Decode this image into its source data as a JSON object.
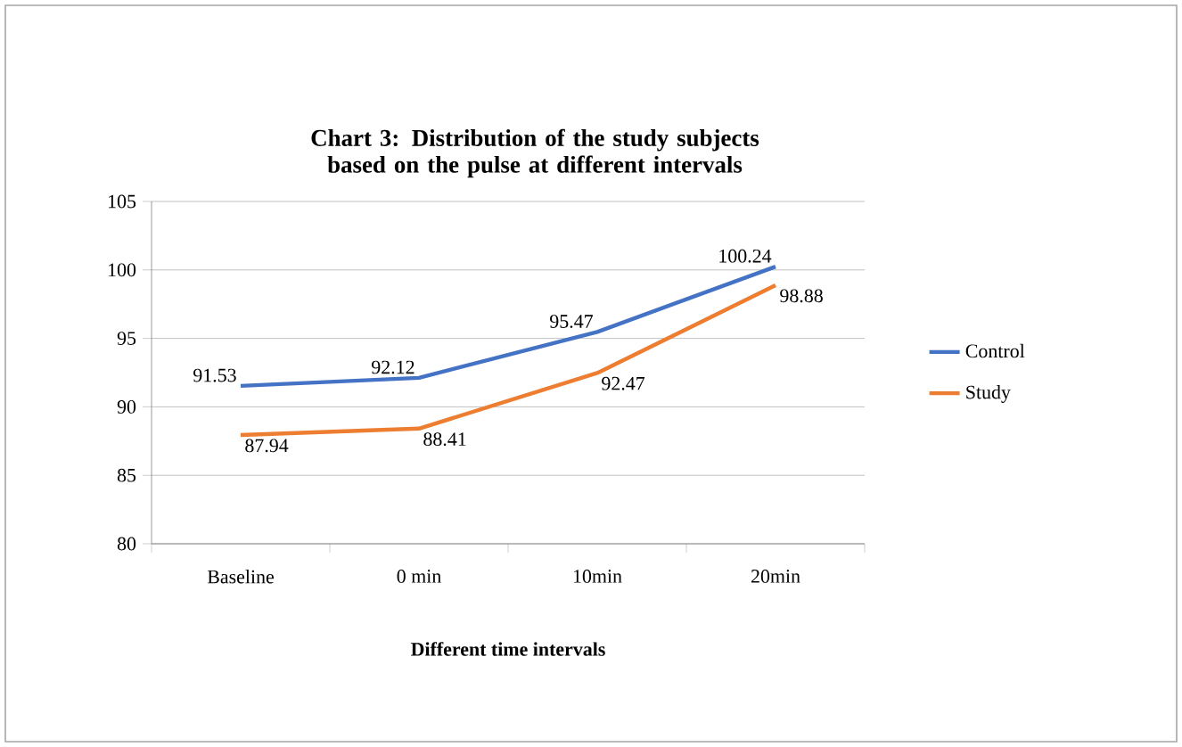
{
  "chart_data": {
    "type": "line",
    "title": "Chart 3: Distribution of the study subjects based on the pulse at different intervals",
    "xlabel": "Different time intervals",
    "categories": [
      "Baseline",
      "0 min",
      "10min",
      "20min"
    ],
    "series": [
      {
        "name": "Control",
        "color": "#4472c4",
        "values": [
          91.53,
          92.12,
          95.47,
          100.24
        ]
      },
      {
        "name": "Study",
        "color": "#ed7d31",
        "values": [
          87.94,
          88.41,
          92.47,
          98.88
        ]
      }
    ],
    "ylim": [
      80,
      105
    ],
    "yticks": [
      80,
      85,
      90,
      95,
      100,
      105
    ],
    "grid": "y",
    "legend": "right",
    "data_labels": true
  }
}
